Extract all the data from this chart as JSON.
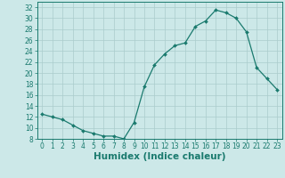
{
  "x": [
    0,
    1,
    2,
    3,
    4,
    5,
    6,
    7,
    8,
    9,
    10,
    11,
    12,
    13,
    14,
    15,
    16,
    17,
    18,
    19,
    20,
    21,
    22,
    23
  ],
  "y": [
    12.5,
    12.0,
    11.5,
    10.5,
    9.5,
    9.0,
    8.5,
    8.5,
    8.0,
    11.0,
    17.5,
    21.5,
    23.5,
    25.0,
    25.5,
    28.5,
    29.5,
    31.5,
    31.0,
    30.0,
    27.5,
    21.0,
    19.0,
    17.0
  ],
  "xlabel": "Humidex (Indice chaleur)",
  "line_color": "#1a7a6e",
  "marker_color": "#1a7a6e",
  "bg_color": "#cce8e8",
  "grid_color": "#aacccc",
  "xlim": [
    -0.5,
    23.5
  ],
  "ylim": [
    8,
    33
  ],
  "yticks": [
    8,
    10,
    12,
    14,
    16,
    18,
    20,
    22,
    24,
    26,
    28,
    30,
    32
  ],
  "xticks": [
    0,
    1,
    2,
    3,
    4,
    5,
    6,
    7,
    8,
    9,
    10,
    11,
    12,
    13,
    14,
    15,
    16,
    17,
    18,
    19,
    20,
    21,
    22,
    23
  ],
  "xtick_labels": [
    "0",
    "1",
    "2",
    "3",
    "4",
    "5",
    "6",
    "7",
    "8",
    "9",
    "10",
    "11",
    "12",
    "13",
    "14",
    "15",
    "16",
    "17",
    "18",
    "19",
    "20",
    "21",
    "22",
    "23"
  ],
  "ytick_labels": [
    "8",
    "10",
    "12",
    "14",
    "16",
    "18",
    "20",
    "22",
    "24",
    "26",
    "28",
    "30",
    "32"
  ],
  "tick_fontsize": 5.5,
  "xlabel_fontsize": 7.5,
  "axis_color": "#1a7a6e"
}
